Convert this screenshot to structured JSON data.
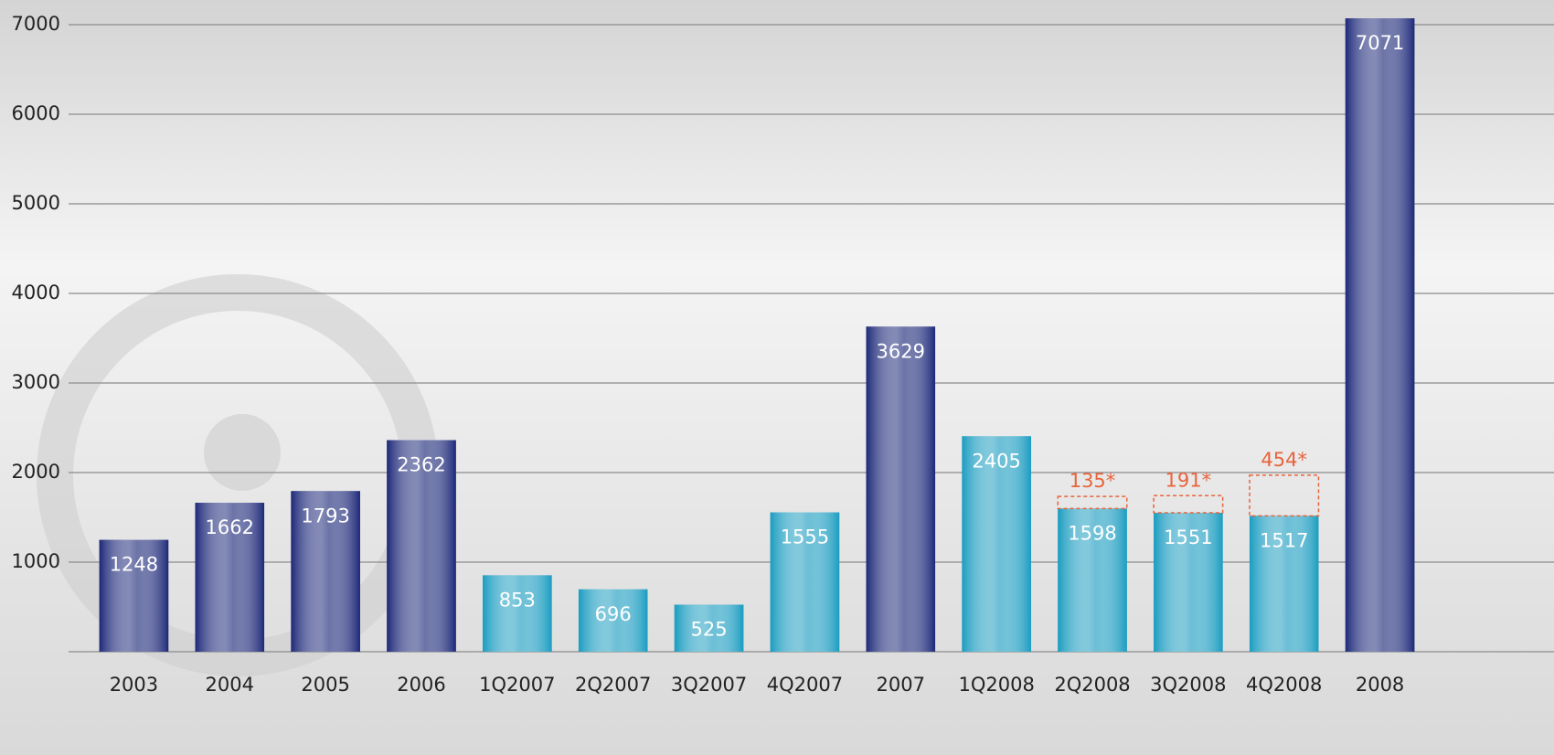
{
  "chart_data": {
    "type": "bar",
    "categories": [
      "2003",
      "2004",
      "2005",
      "2006",
      "1Q2007",
      "2Q2007",
      "3Q2007",
      "4Q2007",
      "2007",
      "1Q2008",
      "2Q2008",
      "3Q2008",
      "4Q2008",
      "2008"
    ],
    "values": [
      1248,
      1662,
      1793,
      2362,
      853,
      696,
      525,
      1555,
      3629,
      2405,
      1598,
      1551,
      1517,
      7071
    ],
    "bar_colors": [
      "#1c2878",
      "#1c2878",
      "#1c2878",
      "#1c2878",
      "#1a9cc0",
      "#1a9cc0",
      "#1a9cc0",
      "#1a9cc0",
      "#1c2878",
      "#1a9cc0",
      "#1a9cc0",
      "#1a9cc0",
      "#1a9cc0",
      "#1c2878"
    ],
    "stacked": {
      "values": [
        null,
        null,
        null,
        null,
        null,
        null,
        null,
        null,
        null,
        null,
        135,
        191,
        454,
        null
      ],
      "value_labels": [
        null,
        null,
        null,
        null,
        null,
        null,
        null,
        null,
        null,
        null,
        "135*",
        "191*",
        "454*",
        null
      ],
      "color": "#e8643c"
    },
    "ylim": [
      0,
      7200
    ],
    "yticks": [
      1000,
      2000,
      3000,
      4000,
      5000,
      6000,
      7000
    ],
    "grid": true
  }
}
